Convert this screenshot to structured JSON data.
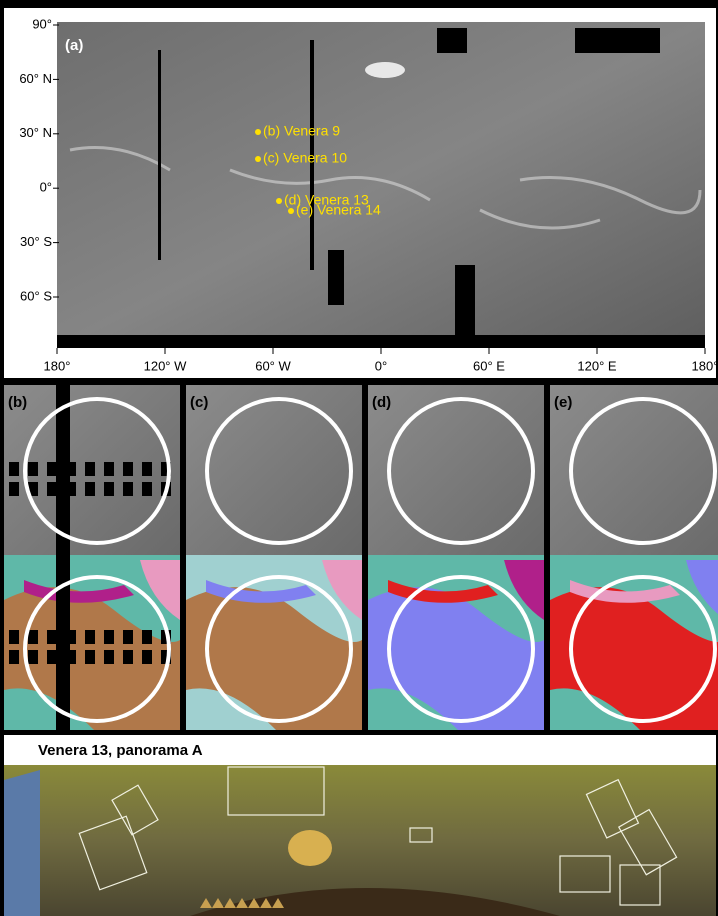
{
  "map": {
    "panel_label": "(a)",
    "lat_labels": [
      "90°",
      "60° N",
      "30° N",
      "0°",
      "30° S",
      "60° S"
    ],
    "lon_labels": [
      "180°",
      "120° W",
      "60° W",
      "0°",
      "60° E",
      "120° E",
      "180°"
    ],
    "sites": [
      "(b) Venera 9",
      "(c) Venera 10",
      "(d) Venera 13",
      "(e) Venera 14"
    ]
  },
  "panels": [
    "(b)",
    "(c)",
    "(d)",
    "(e)"
  ],
  "panorama": {
    "title": "Venera 13, panorama A"
  }
}
